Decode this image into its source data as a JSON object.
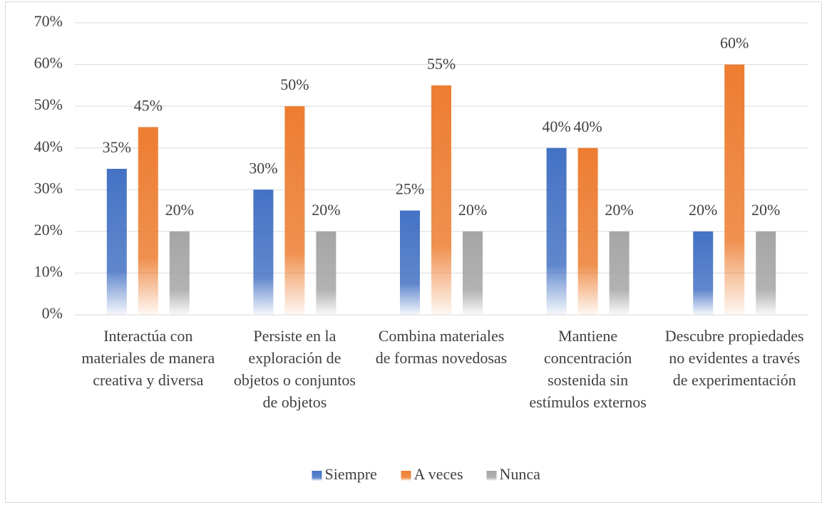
{
  "chart_data": {
    "type": "bar",
    "categories": [
      "Interactúa con materiales de manera creativa y diversa",
      "Persiste en la exploración de objetos o conjuntos de objetos",
      "Combina materiales de formas novedosas",
      "Mantiene concentración sostenida sin estímulos externos",
      "Descubre propiedades no evidentes a través de experimentación"
    ],
    "series": [
      {
        "name": "Siempre",
        "color": "#4472c4",
        "values": [
          35,
          30,
          25,
          40,
          20
        ],
        "value_labels": [
          "35%",
          "30%",
          "25%",
          "40%",
          "20%"
        ]
      },
      {
        "name": "A veces",
        "color": "#ed7d31",
        "values": [
          45,
          50,
          55,
          40,
          60
        ],
        "value_labels": [
          "45%",
          "50%",
          "55%",
          "40%",
          "60%"
        ]
      },
      {
        "name": "Nunca",
        "color": "#a5a5a5",
        "values": [
          20,
          20,
          20,
          20,
          20
        ],
        "value_labels": [
          "20%",
          "20%",
          "20%",
          "20%",
          "20%"
        ]
      }
    ],
    "ylim": [
      0,
      70
    ],
    "yticks": [
      {
        "value": 0,
        "label": "0%"
      },
      {
        "value": 10,
        "label": "10%"
      },
      {
        "value": 20,
        "label": "20%"
      },
      {
        "value": 30,
        "label": "30%"
      },
      {
        "value": 40,
        "label": "40%"
      },
      {
        "value": 50,
        "label": "50%"
      },
      {
        "value": 60,
        "label": "60%"
      },
      {
        "value": 70,
        "label": "70%"
      }
    ],
    "grid": true,
    "legend": "bottom"
  }
}
